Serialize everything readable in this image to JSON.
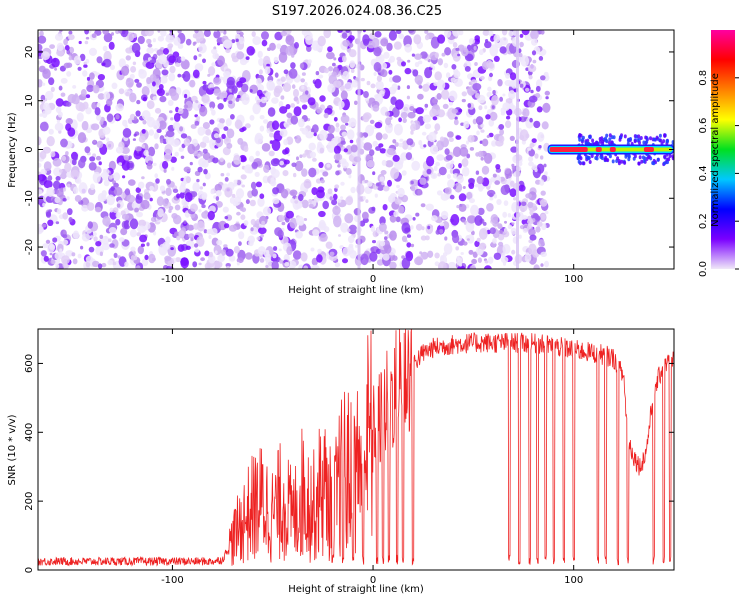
{
  "title": "S197.2026.024.08.36.C25",
  "chart_data": [
    {
      "type": "heatmap",
      "name": "spectrogram",
      "xlabel": "Height of straight line (km)",
      "ylabel": "Frequency (Hz)",
      "xlim": [
        -167,
        150
      ],
      "ylim": [
        -24.5,
        24.5
      ],
      "xticks": [
        -100,
        0,
        100
      ],
      "yticks": [
        -20,
        -10,
        0,
        10,
        20
      ],
      "colorbar": {
        "label": "Normalized spectral amplitude",
        "range": [
          0,
          1
        ],
        "ticks": [
          "0.0",
          "0.2",
          "0.4",
          "0.6",
          "0.8"
        ],
        "colormap": [
          "#f0e8f8",
          "#7a00ff",
          "#0000ff",
          "#00c8ff",
          "#00e020",
          "#ffff00",
          "#ff8000",
          "#ff0000",
          "#ff00a0"
        ]
      },
      "noise_region_km": [
        -167,
        87
      ],
      "carrier": {
        "frequency_hz": 0,
        "segments_km": [
          [
            87,
            150
          ]
        ],
        "peak_segments_km": [
          [
            88,
            107
          ],
          [
            111,
            114
          ],
          [
            118,
            121
          ],
          [
            135,
            140
          ]
        ]
      },
      "vertical_streaks_km": [
        -7,
        72
      ]
    },
    {
      "type": "line",
      "name": "snr",
      "xlabel": "Height of straight line (km)",
      "ylabel": "SNR (10 * v/v)",
      "xlim": [
        -167,
        150
      ],
      "ylim": [
        0,
        700
      ],
      "xticks": [
        -100,
        0,
        100
      ],
      "yticks": [
        0,
        200,
        400,
        600
      ],
      "color": "#ee2222",
      "series": [
        {
          "name": "SNR",
          "x": [
            -167,
            -150,
            -130,
            -110,
            -90,
            -80,
            -75,
            -70,
            -65,
            -60,
            -55,
            -50,
            -45,
            -40,
            -35,
            -30,
            -25,
            -20,
            -15,
            -10,
            -5,
            0,
            5,
            10,
            15,
            20,
            25,
            30,
            35,
            40,
            50,
            60,
            70,
            80,
            90,
            100,
            110,
            115,
            120,
            125,
            127,
            130,
            133,
            136,
            140,
            145,
            150
          ],
          "y": [
            25,
            25,
            25,
            25,
            25,
            25,
            30,
            90,
            140,
            180,
            200,
            160,
            210,
            150,
            230,
            180,
            250,
            170,
            300,
            260,
            350,
            400,
            450,
            520,
            560,
            600,
            630,
            645,
            650,
            655,
            660,
            660,
            660,
            658,
            650,
            640,
            630,
            625,
            615,
            560,
            380,
            330,
            300,
            340,
            520,
            600,
            610
          ]
        }
      ],
      "dropout_x": [
        -20,
        -15,
        -10,
        -5,
        2,
        5,
        8,
        12,
        15,
        20,
        68,
        73,
        78,
        82,
        86,
        90,
        95,
        100,
        112,
        116,
        122,
        127,
        140,
        145,
        148
      ]
    }
  ]
}
